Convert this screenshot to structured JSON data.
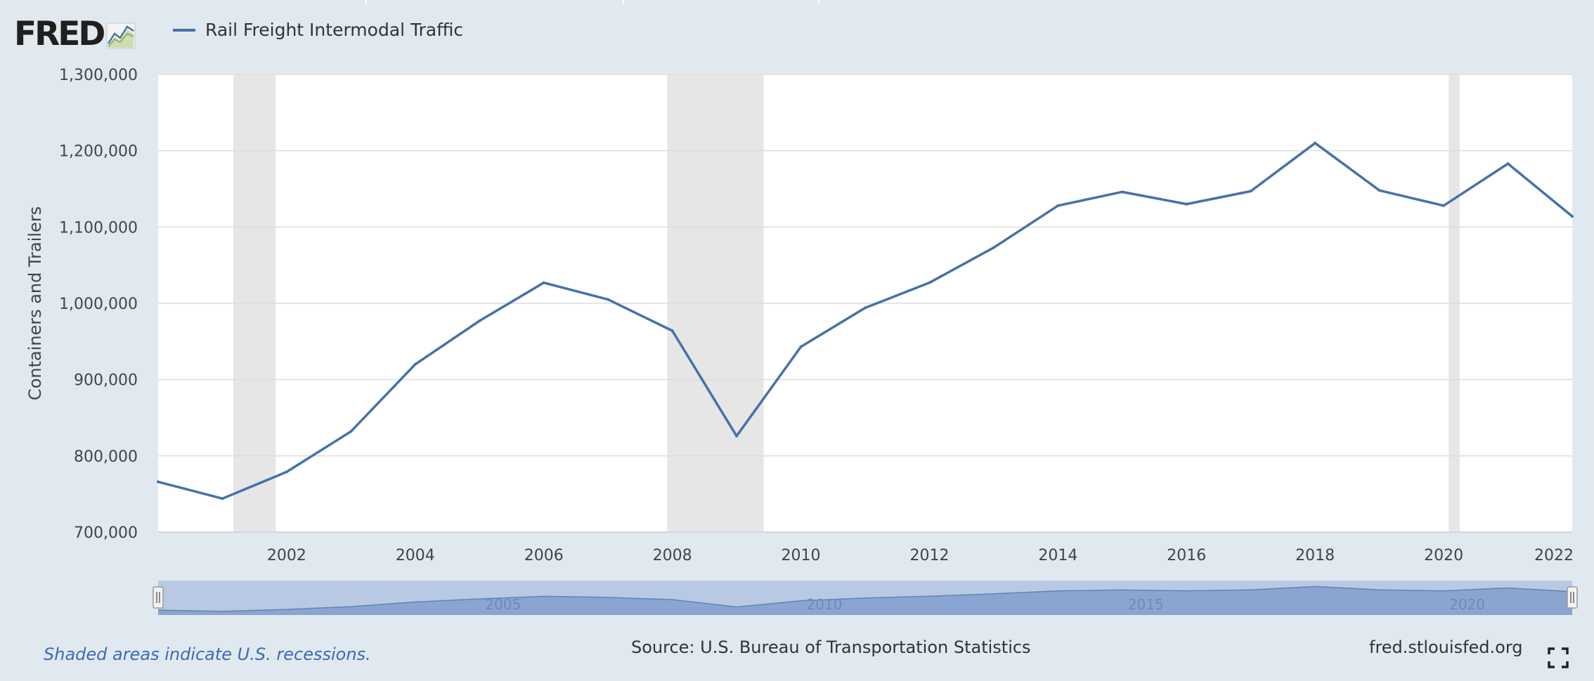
{
  "header": {
    "logo_text": "FRED",
    "legend_label": "Rail Freight Intermodal Traffic"
  },
  "footer": {
    "recession_note": "Shaded areas indicate U.S. recessions.",
    "source": "Source: U.S. Bureau of Transportation Statistics",
    "site": "fred.stlouisfed.org"
  },
  "icons": [
    "fred-chart-icon",
    "fullscreen-icon",
    "navigator-handle-icon"
  ],
  "colors": {
    "series": "#4572a7",
    "recession": "#e6e6e6",
    "navigator_fill": "#8aa5cf",
    "navigator_selection": "#b9c9e4",
    "footnote": "#3d6bb3"
  },
  "chart_data": {
    "type": "line",
    "xlabel": "",
    "ylabel": "Containers and Trailers",
    "x": [
      2000,
      2001,
      2002,
      2003,
      2004,
      2005,
      2006,
      2007,
      2008,
      2009,
      2010,
      2011,
      2012,
      2013,
      2014,
      2015,
      2016,
      2017,
      2018,
      2019,
      2020,
      2021,
      2022
    ],
    "series": [
      {
        "name": "Rail Freight Intermodal Traffic",
        "values": [
          766000,
          744000,
          779000,
          832000,
          920000,
          977000,
          1027000,
          1005000,
          964000,
          826000,
          943000,
          994000,
          1027000,
          1073000,
          1128000,
          1146000,
          1130000,
          1147000,
          1210000,
          1148000,
          1128000,
          1183000,
          1114000
        ]
      }
    ],
    "xlim": [
      2000,
      2022
    ],
    "ylim": [
      700000,
      1300000
    ],
    "x_ticks": [
      "2002",
      "2004",
      "2006",
      "2008",
      "2010",
      "2012",
      "2014",
      "2016",
      "2018",
      "2020",
      "2022"
    ],
    "y_ticks": [
      "700,000",
      "800,000",
      "900,000",
      "1,000,000",
      "1,100,000",
      "1,200,000",
      "1,300,000"
    ],
    "recessions": [
      [
        2001.17,
        2001.83
      ],
      [
        2007.92,
        2009.42
      ],
      [
        2020.08,
        2020.25
      ]
    ],
    "navigator_ticks": [
      "2005",
      "2010",
      "2015",
      "2020"
    ],
    "grid": true,
    "legend": "top-left"
  }
}
